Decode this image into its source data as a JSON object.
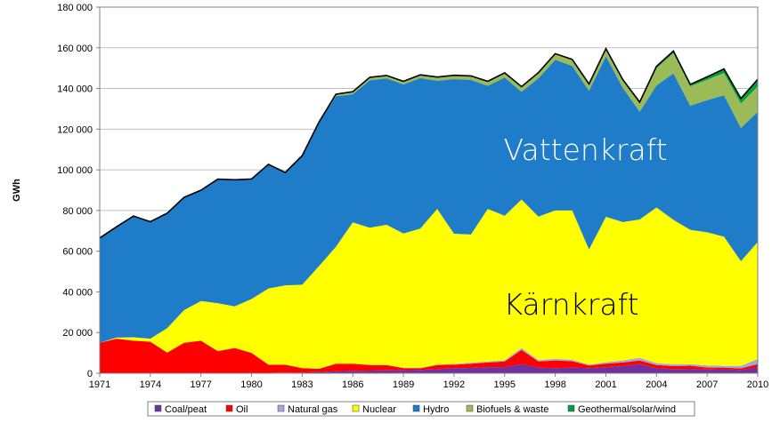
{
  "chart_data": {
    "type": "area",
    "stacked": true,
    "ylabel": "GWh",
    "ylim": [
      0,
      180000
    ],
    "yticks": [
      0,
      20000,
      40000,
      60000,
      80000,
      100000,
      120000,
      140000,
      160000,
      180000
    ],
    "ytick_labels": [
      "0",
      "20 000",
      "40 000",
      "60 000",
      "80 000",
      "100 000",
      "120 000",
      "140 000",
      "160 000",
      "180 000"
    ],
    "xlim": [
      1971,
      2010
    ],
    "xticks": [
      1971,
      1974,
      1977,
      1980,
      1983,
      1986,
      1989,
      1992,
      1995,
      1998,
      2001,
      2004,
      2007,
      2010
    ],
    "xtick_labels": [
      "1971",
      "1974",
      "1977",
      "1980",
      "1983",
      "1986",
      "1989",
      "1992",
      "1995",
      "1998",
      "2001",
      "2004",
      "2007",
      "2010"
    ],
    "legend_position": "bottom",
    "grid": "horizontal",
    "x": [
      1971,
      1972,
      1973,
      1974,
      1975,
      1976,
      1977,
      1978,
      1979,
      1980,
      1981,
      1982,
      1983,
      1984,
      1985,
      1986,
      1987,
      1988,
      1989,
      1990,
      1991,
      1992,
      1993,
      1994,
      1995,
      1996,
      1997,
      1998,
      1999,
      2000,
      2001,
      2002,
      2003,
      2004,
      2005,
      2006,
      2007,
      2008,
      2009,
      2010
    ],
    "series": [
      {
        "name": "Coal/peat",
        "color": "#7030a0",
        "values": [
          200,
          200,
          200,
          200,
          200,
          200,
          200,
          200,
          200,
          200,
          200,
          300,
          400,
          600,
          1000,
          1200,
          1300,
          1400,
          1500,
          1600,
          2000,
          2500,
          2600,
          3000,
          3000,
          4500,
          2800,
          2500,
          2800,
          2500,
          3000,
          3500,
          4500,
          2500,
          2000,
          2200,
          1800,
          2000,
          1600,
          3000
        ]
      },
      {
        "name": "Oil",
        "color": "#ff0000",
        "values": [
          14800,
          16800,
          15800,
          15300,
          10000,
          14800,
          15800,
          10700,
          12200,
          9800,
          4000,
          3900,
          2100,
          1600,
          3700,
          3500,
          2700,
          2600,
          1000,
          800,
          2000,
          1700,
          2100,
          2300,
          2800,
          7000,
          3000,
          3800,
          3100,
          1300,
          1700,
          1800,
          1800,
          1500,
          1500,
          1500,
          1000,
          800,
          800,
          1500
        ]
      },
      {
        "name": "Natural gas",
        "color": "#a6a6d8",
        "values": [
          0,
          0,
          0,
          0,
          0,
          0,
          0,
          0,
          0,
          0,
          0,
          0,
          0,
          0,
          0,
          0,
          0,
          0,
          200,
          200,
          300,
          400,
          500,
          500,
          600,
          900,
          700,
          800,
          700,
          500,
          700,
          1000,
          1300,
          1000,
          900,
          800,
          1000,
          800,
          1200,
          2500
        ]
      },
      {
        "name": "Nuclear",
        "color": "#ffff00",
        "values": [
          0,
          500,
          1700,
          1500,
          12000,
          16000,
          19500,
          23500,
          20500,
          26500,
          37500,
          39000,
          41000,
          50500,
          57500,
          69500,
          67500,
          69000,
          66000,
          68500,
          76500,
          64000,
          63000,
          75000,
          71000,
          73000,
          70500,
          73000,
          73500,
          56500,
          71500,
          68000,
          68000,
          76500,
          71000,
          66000,
          65500,
          63500,
          51500,
          57500
        ]
      },
      {
        "name": "Hydro",
        "color": "#1f7cc8",
        "values": [
          51500,
          54500,
          59600,
          57500,
          56500,
          55500,
          54500,
          61000,
          62200,
          59000,
          61000,
          55500,
          63500,
          70800,
          74000,
          63000,
          72500,
          72000,
          73300,
          74000,
          63000,
          76000,
          76000,
          60500,
          68000,
          53000,
          68000,
          74000,
          71000,
          78000,
          79000,
          66000,
          53000,
          60000,
          72000,
          61000,
          65000,
          69500,
          65500,
          64000
        ]
      },
      {
        "name": "Biofuels & waste",
        "color": "#9bbb59",
        "values": [
          0,
          0,
          0,
          0,
          0,
          0,
          0,
          0,
          0,
          0,
          0,
          0,
          0,
          0,
          1000,
          1200,
          1500,
          1400,
          1500,
          1600,
          1800,
          1900,
          2000,
          2100,
          2200,
          2400,
          2600,
          2800,
          2900,
          3000,
          3200,
          3500,
          4000,
          8500,
          10000,
          9500,
          10000,
          11000,
          12000,
          12500
        ]
      },
      {
        "name": "Geothermal/solar/wind",
        "color": "#00a040",
        "values": [
          0,
          0,
          0,
          0,
          0,
          0,
          0,
          0,
          0,
          0,
          0,
          0,
          0,
          0,
          0,
          0,
          0,
          0,
          0,
          0,
          0,
          0,
          0,
          100,
          100,
          100,
          200,
          200,
          300,
          400,
          500,
          600,
          700,
          900,
          1000,
          1000,
          1400,
          2000,
          2500,
          3500
        ]
      }
    ],
    "annotations": [
      {
        "text": "Vattenkraft",
        "x": 2001,
        "y": 110000,
        "color": "#ffffff"
      },
      {
        "text": "Kärnkraft",
        "x": 2001,
        "y": 34000,
        "color": "#000000"
      }
    ]
  }
}
